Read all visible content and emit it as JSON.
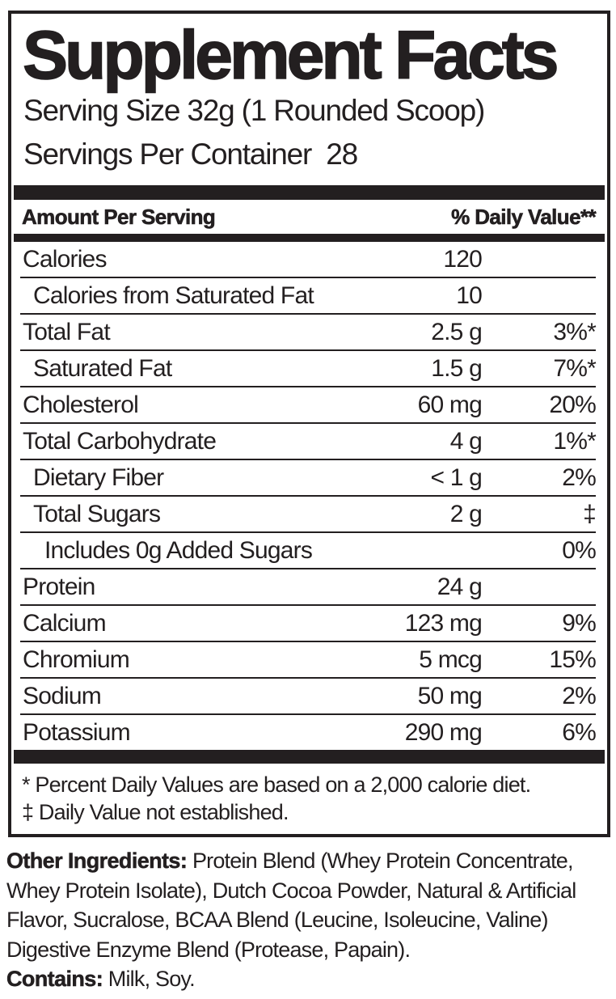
{
  "label": {
    "title": "Supplement Facts",
    "serving_size": "Serving Size 32g (1 Rounded Scoop)",
    "servings_per_container": "Servings Per Container  28",
    "header": {
      "left": "Amount Per Serving",
      "right": "% Daily Value**"
    },
    "rows": [
      {
        "name": "Calories",
        "amount": "120",
        "dv": "",
        "indent": 0
      },
      {
        "name": "Calories from Saturated Fat",
        "amount": "10",
        "dv": "",
        "indent": 1
      },
      {
        "name": "Total Fat",
        "amount": "2.5 g",
        "dv": "3%*",
        "indent": 0
      },
      {
        "name": "Saturated Fat",
        "amount": "1.5 g",
        "dv": "7%*",
        "indent": 1
      },
      {
        "name": "Cholesterol",
        "amount": "60 mg",
        "dv": "20%",
        "indent": 0
      },
      {
        "name": "Total Carbohydrate",
        "amount": "4 g",
        "dv": "1%*",
        "indent": 0
      },
      {
        "name": "Dietary Fiber",
        "amount": "< 1 g",
        "dv": "2%",
        "indent": 1
      },
      {
        "name": "Total Sugars",
        "amount": "2 g",
        "dv": "‡",
        "indent": 1
      },
      {
        "name": "Includes 0g Added Sugars",
        "amount": "",
        "dv": "0%",
        "indent": 2
      },
      {
        "name": "Protein",
        "amount": "24 g",
        "dv": "",
        "indent": 0
      },
      {
        "name": "Calcium",
        "amount": "123 mg",
        "dv": "9%",
        "indent": 0
      },
      {
        "name": "Chromium",
        "amount": "5 mcg",
        "dv": "15%",
        "indent": 0
      },
      {
        "name": "Sodium",
        "amount": "50 mg",
        "dv": "2%",
        "indent": 0
      },
      {
        "name": "Potassium",
        "amount": "290 mg",
        "dv": "6%",
        "indent": 0
      }
    ],
    "footnotes": [
      "* Percent Daily Values are based on a 2,000 calorie diet.",
      "‡ Daily Value not established."
    ]
  },
  "other_ingredients": {
    "label": "Other Ingredients:",
    "text": "Protein Blend (Whey Protein Concentrate, Whey Protein Isolate), Dutch Cocoa Powder, Natural & Artificial Flavor, Sucralose, BCAA Blend (Leucine, Isoleucine, Valine) Digestive Enzyme Blend (Protease, Papain)."
  },
  "contains": {
    "label": "Contains:",
    "text": "Milk, Soy."
  },
  "colors": {
    "ink": "#231f20",
    "background": "#ffffff"
  }
}
